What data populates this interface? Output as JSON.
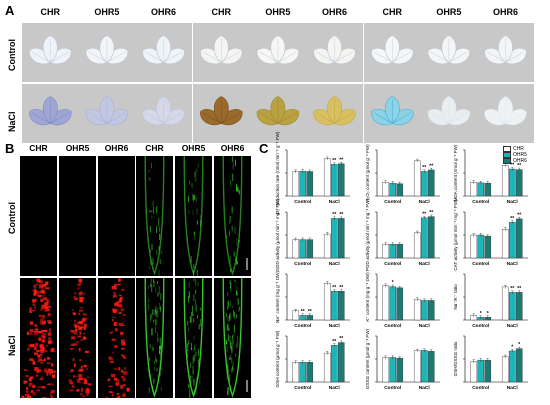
{
  "panelA": {
    "letter": "A",
    "groups": [
      {
        "headers": [
          "CHR",
          "OHR5",
          "OHR6"
        ]
      },
      {
        "headers": [
          "CHR",
          "OHR5",
          "OHR6"
        ]
      },
      {
        "headers": [
          "CHR",
          "OHR5",
          "OHR6"
        ]
      }
    ],
    "rows": [
      "Control",
      "NaCl"
    ],
    "bg_color": "#c8c8c8"
  },
  "panelB": {
    "letter": "B",
    "headers": [
      "CHR",
      "OHR5",
      "OHR6",
      "CHR",
      "OHR5",
      "OHR6"
    ],
    "rows": [
      "Control",
      "NaCl"
    ],
    "red_color": "#ff1a10",
    "green_color": "#3ddb30"
  },
  "panelC": {
    "letter": "C",
    "legend": [
      {
        "name": "CHR",
        "color": "#ffffff"
      },
      {
        "name": "OHR5",
        "color": "#1fb5b8"
      },
      {
        "name": "OHR6",
        "color": "#1c7a74"
      }
    ]
  },
  "chart_data": [
    {
      "type": "bar",
      "ylabel": "O₂⁻ production rate (nmol min⁻¹ g⁻¹ FW)",
      "categories": [
        "Control",
        "NaCl"
      ],
      "series": [
        {
          "name": "CHR",
          "values": [
            8.0,
            12.2
          ]
        },
        {
          "name": "OHR5",
          "values": [
            8.1,
            10.3
          ]
        },
        {
          "name": "OHR6",
          "values": [
            8.0,
            10.5
          ]
        }
      ],
      "ylim": [
        0,
        15
      ],
      "sig": [
        [
          "",
          "",
          ""
        ],
        [
          "",
          "**",
          "**"
        ]
      ]
    },
    {
      "type": "bar",
      "ylabel": "H₂O₂ content (μmol g⁻¹ FW)",
      "categories": [
        "Control",
        "NaCl"
      ],
      "series": [
        {
          "name": "CHR",
          "values": [
            0.45,
            1.15
          ]
        },
        {
          "name": "OHR5",
          "values": [
            0.42,
            0.8
          ]
        },
        {
          "name": "OHR6",
          "values": [
            0.4,
            0.85
          ]
        }
      ],
      "ylim": [
        0,
        1.5
      ],
      "sig": [
        [
          "",
          "",
          ""
        ],
        [
          "",
          "**",
          "**"
        ]
      ]
    },
    {
      "type": "bar",
      "ylabel": "MDA content (nmol g⁻¹ FW)",
      "categories": [
        "Control",
        "NaCl"
      ],
      "series": [
        {
          "name": "CHR",
          "values": [
            4.5,
            10.0
          ]
        },
        {
          "name": "OHR5",
          "values": [
            4.3,
            8.8
          ]
        },
        {
          "name": "OHR6",
          "values": [
            4.2,
            8.6
          ]
        }
      ],
      "ylim": [
        0,
        15
      ],
      "sig": [
        [
          "",
          "",
          ""
        ],
        [
          "",
          "**",
          "**"
        ]
      ]
    },
    {
      "type": "bar",
      "ylabel": "SOD activity (μmol min⁻¹ mg⁻¹ FW)",
      "categories": [
        "Control",
        "NaCl"
      ],
      "series": [
        {
          "name": "CHR",
          "values": [
            100,
            130
          ]
        },
        {
          "name": "OHR5",
          "values": [
            100,
            215
          ]
        },
        {
          "name": "OHR6",
          "values": [
            100,
            215
          ]
        }
      ],
      "ylim": [
        0,
        250
      ],
      "sig": [
        [
          "",
          "",
          ""
        ],
        [
          "",
          "**",
          "**"
        ]
      ]
    },
    {
      "type": "bar",
      "ylabel": "POD activity (μmol min⁻¹ mg⁻¹ FW)",
      "categories": [
        "Control",
        "NaCl"
      ],
      "series": [
        {
          "name": "CHR",
          "values": [
            12,
            22
          ]
        },
        {
          "name": "OHR5",
          "values": [
            12,
            35
          ]
        },
        {
          "name": "OHR6",
          "values": [
            12,
            36
          ]
        }
      ],
      "ylim": [
        0,
        40
      ],
      "sig": [
        [
          "",
          "",
          ""
        ],
        [
          "",
          "**",
          "**"
        ]
      ]
    },
    {
      "type": "bar",
      "ylabel": "CAT activity (μmol min⁻¹ mg⁻¹ FW)",
      "categories": [
        "Control",
        "NaCl"
      ],
      "series": [
        {
          "name": "CHR",
          "values": [
            20,
            25
          ]
        },
        {
          "name": "OHR5",
          "values": [
            20,
            31
          ]
        },
        {
          "name": "OHR6",
          "values": [
            19,
            34
          ]
        }
      ],
      "ylim": [
        0,
        40
      ],
      "sig": [
        [
          "",
          "",
          ""
        ],
        [
          "",
          "**",
          "**"
        ]
      ]
    },
    {
      "type": "bar",
      "ylabel": "Na⁺ content (mg g⁻¹ DW)",
      "categories": [
        "Control",
        "NaCl"
      ],
      "series": [
        {
          "name": "CHR",
          "values": [
            0.8,
            3.2
          ]
        },
        {
          "name": "OHR5",
          "values": [
            0.4,
            2.5
          ]
        },
        {
          "name": "OHR6",
          "values": [
            0.4,
            2.5
          ]
        }
      ],
      "ylim": [
        0,
        4
      ],
      "sig": [
        [
          "",
          "**",
          "**"
        ],
        [
          "",
          "**",
          "**"
        ]
      ]
    },
    {
      "type": "bar",
      "ylabel": "K⁺ content (mg g⁻¹ DW)",
      "categories": [
        "Control",
        "NaCl"
      ],
      "series": [
        {
          "name": "CHR",
          "values": [
            1.5,
            0.9
          ]
        },
        {
          "name": "OHR5",
          "values": [
            1.45,
            0.85
          ]
        },
        {
          "name": "OHR6",
          "values": [
            1.4,
            0.85
          ]
        }
      ],
      "ylim": [
        0,
        2
      ],
      "sig": [
        [
          "",
          "*",
          ""
        ],
        [
          "",
          "",
          ""
        ]
      ]
    },
    {
      "type": "bar",
      "ylabel": "Na⁺/K⁺ ratio",
      "categories": [
        "Control",
        "NaCl"
      ],
      "series": [
        {
          "name": "CHR",
          "values": [
            0.5,
            3.6
          ]
        },
        {
          "name": "OHR5",
          "values": [
            0.3,
            3.0
          ]
        },
        {
          "name": "OHR6",
          "values": [
            0.3,
            3.0
          ]
        }
      ],
      "ylim": [
        0,
        5
      ],
      "sig": [
        [
          "",
          "*",
          "*"
        ],
        [
          "",
          "**",
          "**"
        ]
      ]
    },
    {
      "type": "bar",
      "ylabel": "GSH content (μmol g⁻¹ FW)",
      "categories": [
        "Control",
        "NaCl"
      ],
      "series": [
        {
          "name": "CHR",
          "values": [
            15,
            22
          ]
        },
        {
          "name": "OHR5",
          "values": [
            15,
            28
          ]
        },
        {
          "name": "OHR6",
          "values": [
            15,
            30
          ]
        }
      ],
      "ylim": [
        0,
        35
      ],
      "sig": [
        [
          "",
          "",
          ""
        ],
        [
          "",
          "**",
          "**"
        ]
      ]
    },
    {
      "type": "bar",
      "ylabel": "GSSG content (μmol g⁻¹ FW)",
      "categories": [
        "Control",
        "NaCl"
      ],
      "series": [
        {
          "name": "CHR",
          "values": [
            8.0,
            10.2
          ]
        },
        {
          "name": "OHR5",
          "values": [
            8.0,
            10.3
          ]
        },
        {
          "name": "OHR6",
          "values": [
            7.8,
            10.0
          ]
        }
      ],
      "ylim": [
        0,
        15
      ],
      "sig": [
        [
          "",
          "",
          ""
        ],
        [
          "",
          "",
          ""
        ]
      ]
    },
    {
      "type": "bar",
      "ylabel": "GSH/GSSG ratio",
      "categories": [
        "Control",
        "NaCl"
      ],
      "series": [
        {
          "name": "CHR",
          "values": [
            1.8,
            2.2
          ]
        },
        {
          "name": "OHR5",
          "values": [
            1.9,
            2.7
          ]
        },
        {
          "name": "OHR6",
          "values": [
            1.9,
            2.9
          ]
        }
      ],
      "ylim": [
        0,
        4
      ],
      "sig": [
        [
          "",
          "",
          ""
        ],
        [
          "",
          "*",
          "*"
        ]
      ]
    }
  ]
}
